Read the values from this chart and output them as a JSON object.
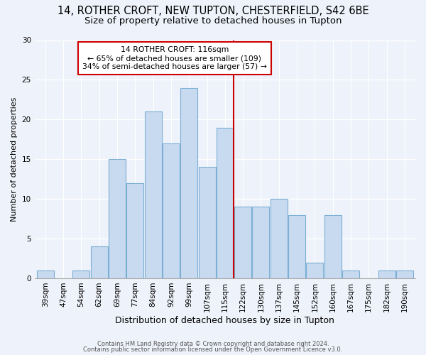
{
  "title": "14, ROTHER CROFT, NEW TUPTON, CHESTERFIELD, S42 6BE",
  "subtitle": "Size of property relative to detached houses in Tupton",
  "xlabel": "Distribution of detached houses by size in Tupton",
  "ylabel": "Number of detached properties",
  "bin_labels": [
    "39sqm",
    "47sqm",
    "54sqm",
    "62sqm",
    "69sqm",
    "77sqm",
    "84sqm",
    "92sqm",
    "99sqm",
    "107sqm",
    "115sqm",
    "122sqm",
    "130sqm",
    "137sqm",
    "145sqm",
    "152sqm",
    "160sqm",
    "167sqm",
    "175sqm",
    "182sqm",
    "190sqm"
  ],
  "bar_heights": [
    1,
    0,
    1,
    4,
    15,
    12,
    21,
    17,
    24,
    14,
    19,
    9,
    9,
    10,
    8,
    2,
    8,
    1,
    0,
    1,
    1
  ],
  "bar_color": "#c8daf0",
  "bar_edgecolor": "#7bafd4",
  "vline_color": "#cc0000",
  "annotation_title": "14 ROTHER CROFT: 116sqm",
  "annotation_line1": "← 65% of detached houses are smaller (109)",
  "annotation_line2": "34% of semi-detached houses are larger (57) →",
  "annotation_box_color": "white",
  "annotation_box_edgecolor": "#cc0000",
  "ylim": [
    0,
    30
  ],
  "yticks": [
    0,
    5,
    10,
    15,
    20,
    25,
    30
  ],
  "footer1": "Contains HM Land Registry data © Crown copyright and database right 2024.",
  "footer2": "Contains public sector information licensed under the Open Government Licence v3.0.",
  "background_color": "#eef2fa",
  "title_fontsize": 10.5,
  "subtitle_fontsize": 9.5,
  "ylabel_fontsize": 8,
  "xlabel_fontsize": 9,
  "tick_fontsize": 7.5,
  "footer_fontsize": 6
}
